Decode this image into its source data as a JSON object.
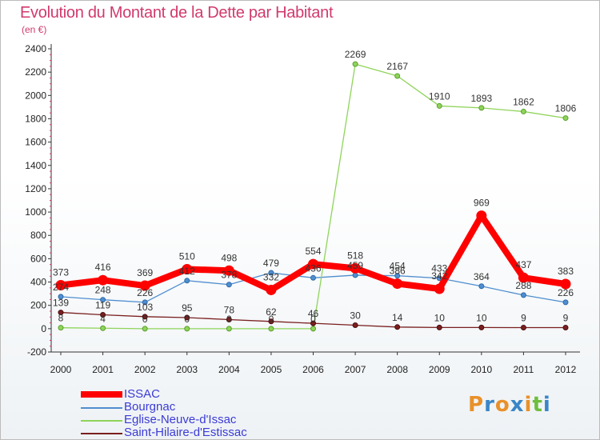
{
  "chart_data": {
    "type": "line",
    "title": "Evolution du Montant de la Dette par Habitant",
    "subtitle": "(en €)",
    "x": [
      "2000",
      "2001",
      "2002",
      "2003",
      "2004",
      "2005",
      "2006",
      "2007",
      "2008",
      "2009",
      "2010",
      "2011",
      "2012"
    ],
    "yticks": [
      "-200",
      "0",
      "200",
      "400",
      "600",
      "800",
      "1000",
      "1200",
      "1400",
      "1600",
      "1800",
      "2000",
      "2200",
      "2400"
    ],
    "ylim": [
      -200,
      2400
    ],
    "grid": false,
    "legend_position": "bottom-left",
    "series": [
      {
        "name": "ISSAC",
        "color": "#ff0000",
        "values": [
          373,
          416,
          369,
          510,
          498,
          332,
          554,
          518,
          386,
          342,
          969,
          437,
          383
        ]
      },
      {
        "name": "Bourgnac",
        "color": "#4f8ecf",
        "values": [
          274,
          248,
          226,
          412,
          378,
          479,
          436,
          459,
          454,
          433,
          364,
          288,
          226
        ]
      },
      {
        "name": "Eglise-Neuve-d'Issac",
        "color": "#8fd45a",
        "values": [
          8,
          4,
          0,
          0,
          0,
          0,
          0,
          2269,
          2167,
          1910,
          1893,
          1862,
          1806
        ]
      },
      {
        "name": "Saint-Hilaire-d'Estissac",
        "color": "#7a1f1f",
        "values": [
          139,
          119,
          103,
          95,
          78,
          62,
          46,
          30,
          14,
          10,
          10,
          9,
          9
        ]
      }
    ]
  },
  "brand": {
    "text": "Proxiti",
    "letter_colors": [
      "#e8912a",
      "#3a86c8",
      "#e8912a",
      "#3a86c8",
      "#e8912a",
      "#6fbe3e",
      "#3a86c8"
    ]
  }
}
